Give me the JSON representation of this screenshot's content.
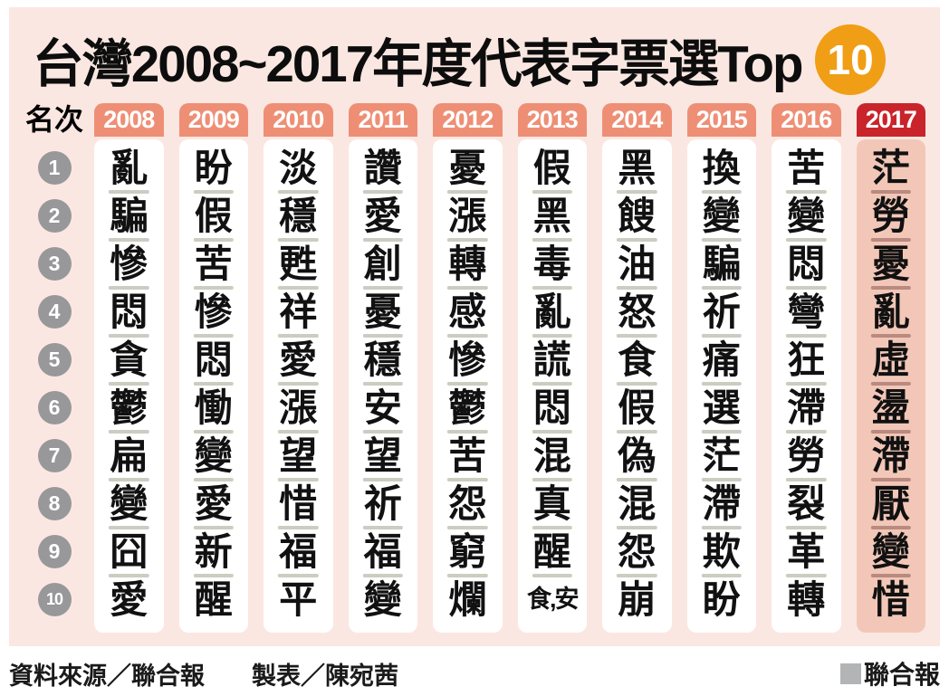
{
  "title": {
    "text": "台灣2008~2017年度代表字票選Top",
    "badge": "10"
  },
  "footer": {
    "source": "資料來源／聯合報",
    "credit": "製表／陳宛茜",
    "brand": "聯合報"
  },
  "colors": {
    "panel_bg": "#fbe7e1",
    "header_bg": "#ee8f75",
    "header_text": "#ffffff",
    "highlight_header_bg": "#c9242b",
    "highlight_col_bg": "#f3c7b8",
    "col_bg": "#ffffff",
    "rank_circle_bg": "#98989a",
    "badge_bg": "#f09e15",
    "divider": "#ccccc0",
    "divider_highlight": "#b98a80",
    "brand_square": "#b3b4b6"
  },
  "chart_data": {
    "type": "table",
    "title": "台灣2008~2017年度代表字票選Top 10",
    "rank_label": "名次",
    "ranks": [
      "1",
      "2",
      "3",
      "4",
      "5",
      "6",
      "7",
      "8",
      "9",
      "10"
    ],
    "highlight_year": "2017",
    "series": [
      {
        "year": "2008",
        "chars": [
          "亂",
          "騙",
          "慘",
          "悶",
          "貪",
          "鬱",
          "扁",
          "變",
          "囧",
          "愛"
        ]
      },
      {
        "year": "2009",
        "chars": [
          "盼",
          "假",
          "苦",
          "慘",
          "悶",
          "慟",
          "變",
          "愛",
          "新",
          "醒"
        ]
      },
      {
        "year": "2010",
        "chars": [
          "淡",
          "穩",
          "甦",
          "祥",
          "愛",
          "漲",
          "望",
          "惜",
          "福",
          "平"
        ]
      },
      {
        "year": "2011",
        "chars": [
          "讚",
          "愛",
          "創",
          "憂",
          "穩",
          "安",
          "望",
          "祈",
          "福",
          "變"
        ]
      },
      {
        "year": "2012",
        "chars": [
          "憂",
          "漲",
          "轉",
          "感",
          "慘",
          "鬱",
          "苦",
          "怨",
          "窮",
          "爛"
        ]
      },
      {
        "year": "2013",
        "chars": [
          "假",
          "黑",
          "毒",
          "亂",
          "謊",
          "悶",
          "混",
          "真",
          "醒",
          "食,安"
        ]
      },
      {
        "year": "2014",
        "chars": [
          "黑",
          "餿",
          "油",
          "怒",
          "食",
          "假",
          "偽",
          "混",
          "怨",
          "崩"
        ]
      },
      {
        "year": "2015",
        "chars": [
          "換",
          "變",
          "騙",
          "祈",
          "痛",
          "選",
          "茫",
          "滯",
          "欺",
          "盼"
        ]
      },
      {
        "year": "2016",
        "chars": [
          "苦",
          "變",
          "悶",
          "彎",
          "狂",
          "滯",
          "勞",
          "裂",
          "革",
          "轉"
        ]
      },
      {
        "year": "2017",
        "chars": [
          "茫",
          "勞",
          "憂",
          "亂",
          "虛",
          "盪",
          "滯",
          "厭",
          "變",
          "惜"
        ]
      }
    ]
  }
}
